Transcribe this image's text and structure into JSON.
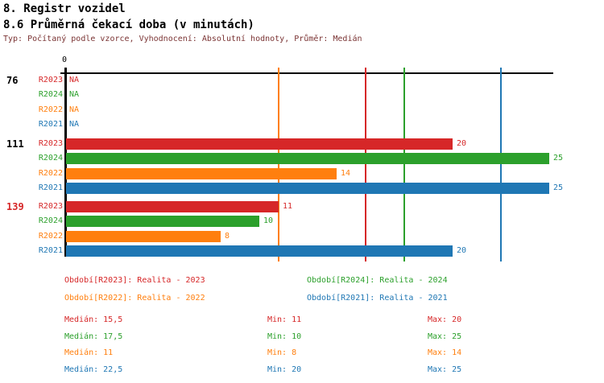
{
  "header": {
    "title": "8. Registr vozidel",
    "subtitle": "8.6 Průměrná čekací doba (v minutách)",
    "meta": "Typ: Počítaný podle vzorce, Vyhodnocení: Absolutní hodnoty, Průměr: Medián"
  },
  "colors": {
    "background": "#ffffff",
    "title_text": "#000000",
    "meta_text": "#7a3333",
    "axis": "#000000",
    "group_label_default": "#000000",
    "group_label_highlight": "#d62728",
    "series": {
      "R2023": "#d62728",
      "R2024": "#2ca02c",
      "R2022": "#ff7f0e",
      "R2021": "#1f77b4"
    }
  },
  "chart_data": {
    "type": "bar",
    "orientation": "horizontal",
    "title": "8.6 Průměrná čekací doba (v minutách)",
    "xlabel": "",
    "ylabel": "",
    "value_unit": "minuty",
    "axis": {
      "zero_label": "0",
      "min": 0,
      "max": 25.25,
      "grid": "median-lines-per-series"
    },
    "series": [
      "R2023",
      "R2024",
      "R2022",
      "R2021"
    ],
    "na_text": "NA",
    "groups": [
      {
        "label": "76",
        "label_highlight": false,
        "values": [
          null,
          null,
          null,
          null
        ]
      },
      {
        "label": "111",
        "label_highlight": false,
        "values": [
          20,
          25,
          14,
          25
        ]
      },
      {
        "label": "139",
        "label_highlight": true,
        "values": [
          11,
          10,
          8,
          20
        ]
      }
    ],
    "median_lines": [
      {
        "series": "R2023",
        "value": 15.5
      },
      {
        "series": "R2024",
        "value": 17.5
      },
      {
        "series": "R2022",
        "value": 11
      },
      {
        "series": "R2021",
        "value": 22.5
      }
    ],
    "legend": [
      {
        "series": "R2023",
        "label": "Období[R2023]: Realita - 2023"
      },
      {
        "series": "R2024",
        "label": "Období[R2024]: Realita - 2024"
      },
      {
        "series": "R2022",
        "label": "Období[R2022]: Realita - 2022"
      },
      {
        "series": "R2021",
        "label": "Období[R2021]: Realita - 2021"
      }
    ],
    "stats": [
      {
        "series": "R2023",
        "median": "Medián: 15,5",
        "min": "Min: 11",
        "max": "Max: 20"
      },
      {
        "series": "R2024",
        "median": "Medián: 17,5",
        "min": "Min: 10",
        "max": "Max: 25"
      },
      {
        "series": "R2022",
        "median": "Medián: 11",
        "min": "Min: 8",
        "max": "Max: 14"
      },
      {
        "series": "R2021",
        "median": "Medián: 22,5",
        "min": "Min: 20",
        "max": "Max: 25"
      }
    ]
  }
}
